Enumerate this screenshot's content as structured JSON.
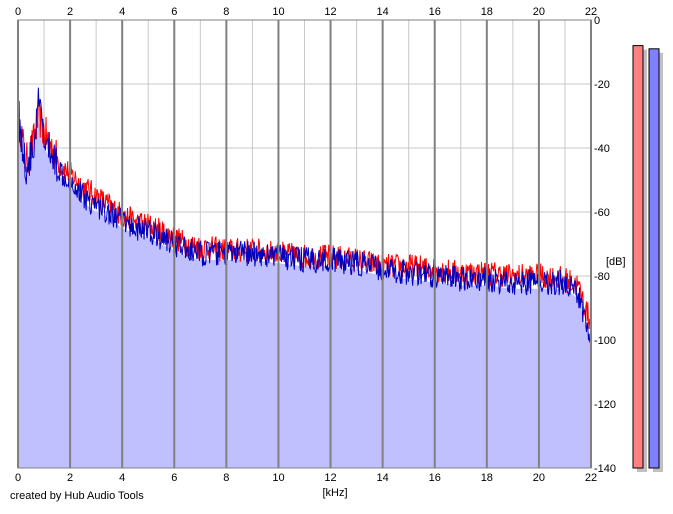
{
  "credit": "created by Hub Audio Tools",
  "colors": {
    "background": "#ffffff",
    "fill": "#c0c0ff",
    "grid_major": "#808080",
    "grid_minor": "#c8c8c8",
    "left_channel": "#ff0000",
    "right_channel": "#0000c0",
    "left_meter": "#ff8080",
    "right_meter": "#8080ff",
    "meter_shadow": "#c0c0c0"
  },
  "chart_data": {
    "type": "area",
    "title": "",
    "xlabel": "[kHz]",
    "ylabel": "[dB]",
    "xlim": [
      0,
      22
    ],
    "ylim": [
      -140,
      0
    ],
    "x_ticks": [
      "0",
      "2",
      "4",
      "6",
      "8",
      "10",
      "12",
      "14",
      "16",
      "18",
      "20",
      "22"
    ],
    "y_ticks": [
      "0",
      "-20",
      "-40",
      "-60",
      "-80",
      "-100",
      "-120",
      "-140"
    ],
    "grid": true,
    "legend": "none",
    "x": [
      0,
      0.3,
      0.6,
      0.8,
      1.0,
      1.3,
      1.6,
      2.0,
      2.5,
      3.0,
      3.5,
      4.0,
      4.5,
      5.0,
      5.5,
      6.0,
      6.5,
      7.0,
      8.0,
      9.0,
      10.0,
      11.0,
      12.0,
      13.0,
      14.0,
      15.0,
      16.0,
      17.0,
      18.0,
      19.0,
      20.0,
      21.0,
      21.5,
      22.0
    ],
    "series": [
      {
        "values": [
          -28,
          -45,
          -38,
          -30,
          -35,
          -40,
          -45,
          -48,
          -52,
          -55,
          -58,
          -61,
          -63,
          -64,
          -66,
          -68,
          -70,
          -71,
          -72,
          -72,
          -73,
          -74,
          -74,
          -75,
          -77,
          -77,
          -78,
          -79,
          -79,
          -80,
          -80,
          -81,
          -83,
          -95
        ]
      },
      {
        "values": [
          -30,
          -47,
          -40,
          -25,
          -38,
          -42,
          -47,
          -50,
          -55,
          -58,
          -60,
          -63,
          -65,
          -66,
          -68,
          -70,
          -72,
          -73,
          -73,
          -73,
          -74,
          -75,
          -75,
          -76,
          -78,
          -79,
          -80,
          -81,
          -81,
          -82,
          -82,
          -82,
          -85,
          -100
        ]
      }
    ],
    "meters": [
      {
        "level": -8
      },
      {
        "level": -9
      }
    ]
  }
}
